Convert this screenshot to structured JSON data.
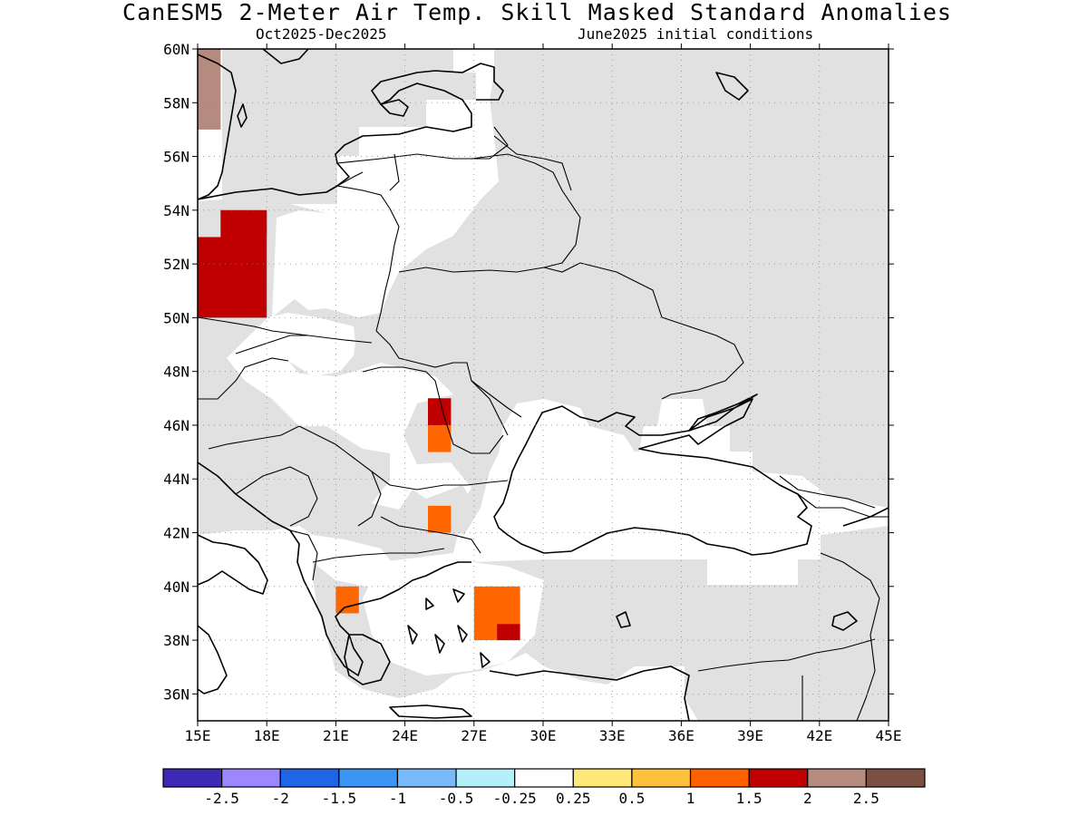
{
  "header": {
    "title": "CanESM5 2-Meter Air Temp. Skill Masked Standard Anomalies",
    "period": "Oct2025-Dec2025",
    "init": "June2025 initial conditions"
  },
  "map": {
    "lon_range": [
      15,
      45
    ],
    "lat_range": [
      35,
      60
    ],
    "lon_ticks": [
      "15E",
      "18E",
      "21E",
      "24E",
      "27E",
      "30E",
      "33E",
      "36E",
      "39E",
      "42E",
      "45E"
    ],
    "lat_ticks": [
      "60N",
      "58N",
      "56N",
      "54N",
      "52N",
      "50N",
      "48N",
      "46N",
      "44N",
      "42N",
      "40N",
      "38N",
      "36N"
    ],
    "masked_color": "#e1e1e1",
    "anomaly_cells": [
      {
        "lon": 15.0,
        "lat": 57.0,
        "w": 1.0,
        "h": 3.0,
        "color": "#b58a7f"
      },
      {
        "lon": 16.0,
        "lat": 53.0,
        "w": 2.0,
        "h": 1.0,
        "color": "#c00000"
      },
      {
        "lon": 18.0,
        "lat": 53.0,
        "w": 0.0,
        "h": 0.0,
        "color": "#c00000"
      },
      {
        "lon": 15.0,
        "lat": 50.0,
        "w": 3.0,
        "h": 3.0,
        "color": "#c00000"
      },
      {
        "lon": 25.0,
        "lat": 45.0,
        "w": 1.0,
        "h": 2.0,
        "color": "#ff6600"
      },
      {
        "lon": 25.0,
        "lat": 42.0,
        "w": 1.0,
        "h": 1.0,
        "color": "#ff6600"
      },
      {
        "lon": 21.0,
        "lat": 39.0,
        "w": 1.0,
        "h": 1.0,
        "color": "#ff6600"
      },
      {
        "lon": 27.0,
        "lat": 38.0,
        "w": 2.0,
        "h": 2.0,
        "color": "#ff6600"
      },
      {
        "lon": 25.0,
        "lat": 46.0,
        "w": 1.0,
        "h": 1.0,
        "color": "#c00000"
      },
      {
        "lon": 28.0,
        "lat": 38.0,
        "w": 1.0,
        "h": 0.6,
        "color": "#c00000"
      },
      {
        "lon": 16.0,
        "lat": 53.0,
        "w": 2.0,
        "h": 1.0,
        "color": "#c00000"
      }
    ]
  },
  "colorbar": {
    "colors": [
      "#3e28b6",
      "#9d87ff",
      "#1f65e6",
      "#3c95f2",
      "#78b9fa",
      "#b4f0fa",
      "#ffffff",
      "#ffe878",
      "#ffc03c",
      "#ff6000",
      "#c00000",
      "#b58a7f",
      "#7a5043"
    ],
    "labels": [
      "-2.5",
      "-2",
      "-1.5",
      "-1",
      "-0.5",
      "-0.25",
      "0.25",
      "0.5",
      "1",
      "1.5",
      "2",
      "2.5"
    ]
  }
}
